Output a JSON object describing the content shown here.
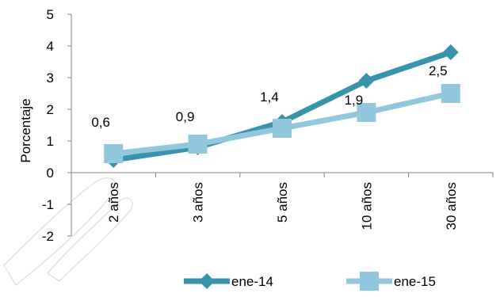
{
  "chart_data": {
    "type": "line",
    "categories": [
      "2 años",
      "3 años",
      "5 años",
      "10 años",
      "30 años"
    ],
    "series": [
      {
        "name": "ene-14",
        "values": [
          0.4,
          0.8,
          1.6,
          2.9,
          3.8
        ],
        "color": "#3a93ad",
        "marker": "diamond"
      },
      {
        "name": "ene-15",
        "values": [
          0.6,
          0.9,
          1.4,
          1.9,
          2.5
        ],
        "color": "#92c8dd",
        "marker": "square"
      }
    ],
    "data_labels": [
      "0,6",
      "0,9",
      "1,4",
      "1,9",
      "2,5"
    ],
    "ylabel": "Porcentaje",
    "ylim": [
      -2,
      5
    ],
    "yticks": [
      "-2",
      "-1",
      "0",
      "1",
      "2",
      "3",
      "4",
      "5"
    ],
    "legend_position": "bottom",
    "grid": false
  }
}
